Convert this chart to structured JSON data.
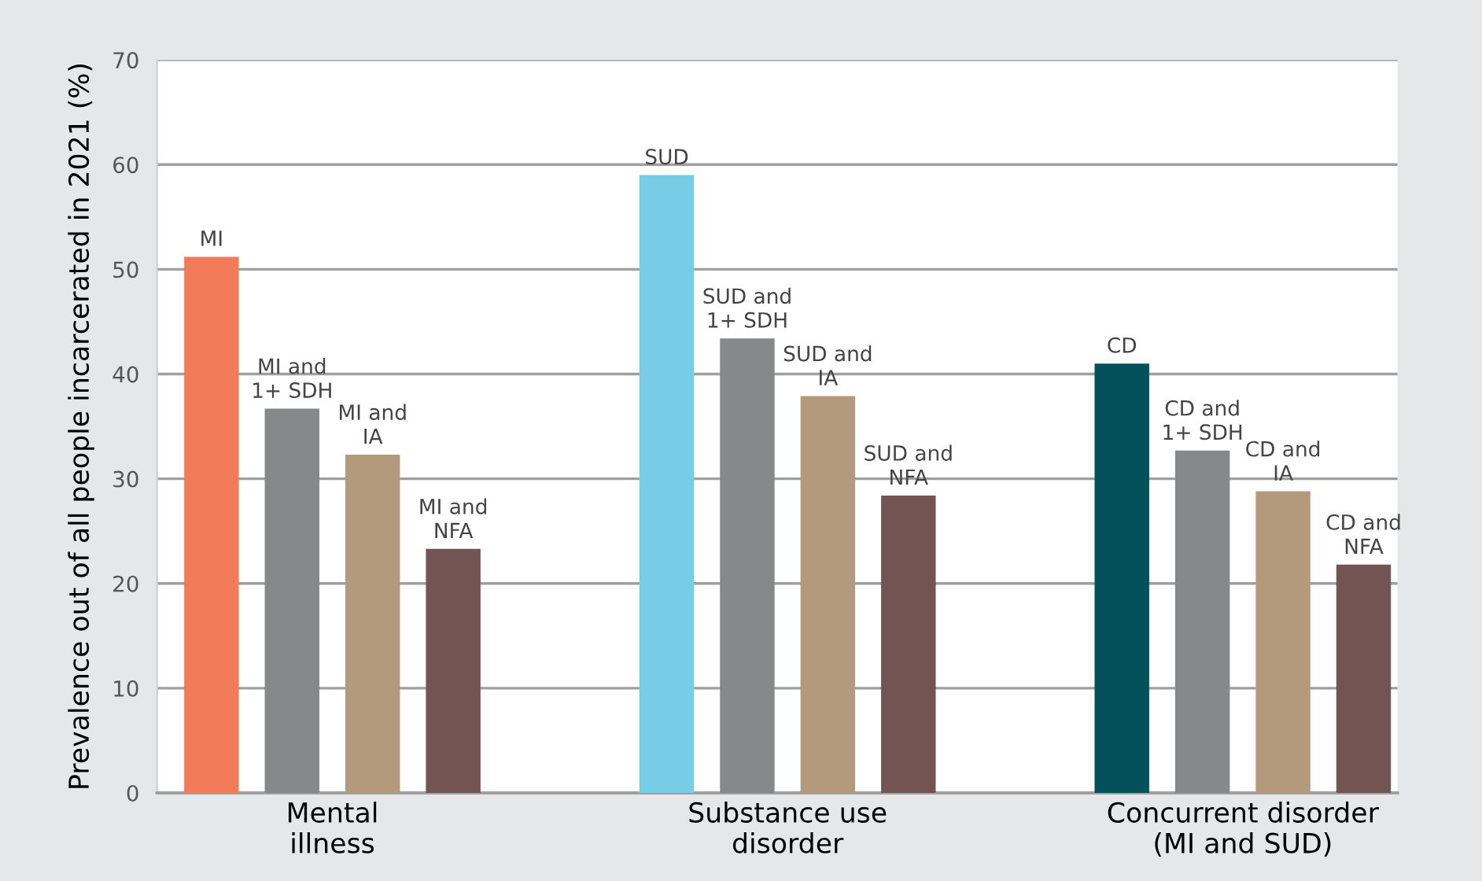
{
  "chart_data": {
    "type": "bar",
    "ylabel": "Prevalence out of all people incarcerated in 2021 (%)",
    "categories": [
      "Mental\nillness",
      "Substance use\ndisorder",
      "Concurrent disorder\n(MI and SUD)"
    ],
    "series": [
      {
        "colors": [
          "#f27b5a",
          "#77cde6",
          "#03505a"
        ],
        "values": [
          51.2,
          59.0,
          41.0
        ],
        "value_labels": [
          "MI",
          "SUD",
          "CD"
        ]
      },
      {
        "color": "#87888a",
        "values": [
          36.7,
          43.4,
          32.7
        ],
        "value_labels": [
          "MI and\n1+ SDH",
          "SUD and\n1+ SDH",
          "CD and\n1+ SDH"
        ]
      },
      {
        "color": "#b39a7d",
        "values": [
          32.3,
          37.9,
          28.8
        ],
        "value_labels": [
          "MI and\nIA",
          "SUD and\nIA",
          "CD and\nIA"
        ]
      },
      {
        "color": "#735452",
        "values": [
          23.3,
          28.4,
          21.8
        ],
        "value_labels": [
          "MI and\nNFA",
          "SUD and\nNFA",
          "CD and\nNFA"
        ]
      }
    ],
    "ylim": [
      0,
      70
    ],
    "yticks": [
      0,
      10,
      20,
      30,
      40,
      50,
      60,
      70
    ],
    "grid": "y",
    "legend": false
  }
}
